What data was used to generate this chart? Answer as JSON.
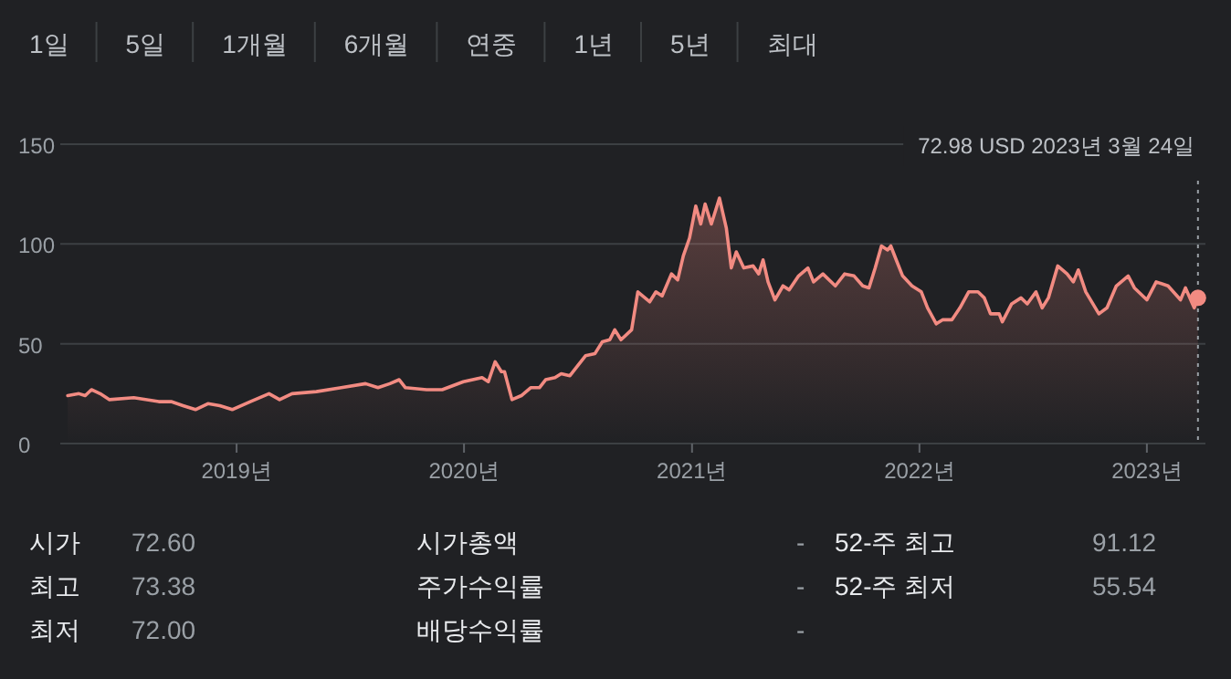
{
  "chart_data": [
    {
      "type": "other",
      "annotations": [
        "1일",
        "5일",
        "1개월",
        "6개월",
        "연중",
        "1년",
        "5년",
        "최대"
      ]
    },
    {
      "type": "area",
      "color": "#f28b82",
      "grid": "y",
      "xlim": [
        "2018-03-24",
        "2023-04-05"
      ],
      "ylim": [
        0,
        150
      ],
      "yticks": [
        0,
        50,
        100,
        150
      ],
      "xticks": [
        {
          "value": "2019-01-01",
          "label": "2019년"
        },
        {
          "value": "2020-01-01",
          "label": "2020년"
        },
        {
          "value": "2021-01-01",
          "label": "2021년"
        },
        {
          "value": "2022-01-01",
          "label": "2022년"
        },
        {
          "value": "2023-01-01",
          "label": "2023년"
        }
      ],
      "x": [
        "2018-04-05",
        "2018-04-23",
        "2018-05-03",
        "2018-05-13",
        "2018-05-27",
        "2018-06-11",
        "2018-07-20",
        "2018-08-29",
        "2018-09-18",
        "2018-10-07",
        "2018-10-27",
        "2018-11-16",
        "2018-12-05",
        "2018-12-25",
        "2019-01-23",
        "2019-02-22",
        "2019-03-11",
        "2019-03-31",
        "2019-05-09",
        "2019-06-18",
        "2019-07-27",
        "2019-08-16",
        "2019-09-04",
        "2019-09-19",
        "2019-09-29",
        "2019-11-02",
        "2019-11-27",
        "2019-12-31",
        "2020-01-30",
        "2020-02-09",
        "2020-02-20",
        "2020-03-01",
        "2020-03-06",
        "2020-03-18",
        "2020-04-02",
        "2020-04-17",
        "2020-05-01",
        "2020-05-11",
        "2020-05-26",
        "2020-06-05",
        "2020-06-19",
        "2020-06-29",
        "2020-07-14",
        "2020-07-29",
        "2020-08-10",
        "2020-08-22",
        "2020-08-30",
        "2020-09-09",
        "2020-09-26",
        "2020-10-06",
        "2020-10-25",
        "2020-11-04",
        "2020-11-14",
        "2020-11-29",
        "2020-12-09",
        "2020-12-18",
        "2020-12-28",
        "2021-01-07",
        "2021-01-15",
        "2021-01-22",
        "2021-02-01",
        "2021-02-14",
        "2021-02-25",
        "2021-03-05",
        "2021-03-13",
        "2021-03-25",
        "2021-04-09",
        "2021-04-18",
        "2021-04-25",
        "2021-05-03",
        "2021-05-14",
        "2021-05-27",
        "2021-06-06",
        "2021-06-21",
        "2021-07-06",
        "2021-07-15",
        "2021-07-30",
        "2021-08-19",
        "2021-09-03",
        "2021-09-18",
        "2021-10-02",
        "2021-10-12",
        "2021-10-22",
        "2021-11-01",
        "2021-11-11",
        "2021-11-16",
        "2021-11-26",
        "2021-12-05",
        "2021-12-20",
        "2022-01-04",
        "2022-01-14",
        "2022-01-28",
        "2022-02-07",
        "2022-02-22",
        "2022-03-07",
        "2022-03-21",
        "2022-04-05",
        "2022-04-15",
        "2022-04-25",
        "2022-05-09",
        "2022-05-14",
        "2022-05-29",
        "2022-06-13",
        "2022-06-23",
        "2022-07-07",
        "2022-07-17",
        "2022-07-27",
        "2022-08-11",
        "2022-08-26",
        "2022-09-05",
        "2022-09-13",
        "2022-09-25",
        "2022-10-16",
        "2022-10-29",
        "2022-11-13",
        "2022-12-02",
        "2022-12-12",
        "2023-01-01",
        "2023-01-16",
        "2023-02-04",
        "2023-02-24",
        "2023-03-04",
        "2023-03-18",
        "2023-03-24"
      ],
      "values": [
        24,
        25,
        24,
        27,
        25,
        22,
        23,
        21,
        21,
        19,
        17,
        20,
        19,
        17,
        21,
        25,
        22,
        25,
        26,
        28,
        30,
        28,
        30,
        32,
        28,
        27,
        27,
        31,
        33,
        31,
        41,
        36,
        36,
        22,
        24,
        28,
        28,
        32,
        33,
        35,
        34,
        38,
        44,
        45,
        51,
        52,
        57,
        52,
        57,
        76,
        71,
        76,
        74,
        85,
        82,
        94,
        103,
        119,
        110,
        120,
        110,
        123,
        108,
        88,
        96,
        88,
        89,
        85,
        92,
        81,
        72,
        79,
        77,
        84,
        88,
        81,
        85,
        79,
        85,
        84,
        79,
        78,
        88,
        99,
        97,
        99,
        91,
        84,
        79,
        76,
        68,
        60,
        62,
        62,
        68,
        76,
        76,
        73,
        65,
        65,
        61,
        70,
        73,
        70,
        76,
        68,
        73,
        89,
        85,
        81,
        87,
        76,
        65,
        68,
        79,
        84,
        78,
        72,
        81,
        79,
        72,
        78,
        68,
        73
      ],
      "ref_lines": [
        {
          "axis": "x",
          "value": "2023-03-24",
          "line_style": "dotted",
          "color": "#9aa0a6"
        }
      ],
      "annotations": [
        "72.98 USD  2023년 3월 24일"
      ]
    },
    {
      "type": "other",
      "annotations": [
        "시가",
        "72.60",
        "시가총액",
        "-",
        "52-주 최고",
        "91.12",
        "최고",
        "73.38",
        "주가수익률",
        "-",
        "52-주 최저",
        "55.54",
        "최저",
        "72.00",
        "배당수익률",
        "-"
      ]
    }
  ]
}
